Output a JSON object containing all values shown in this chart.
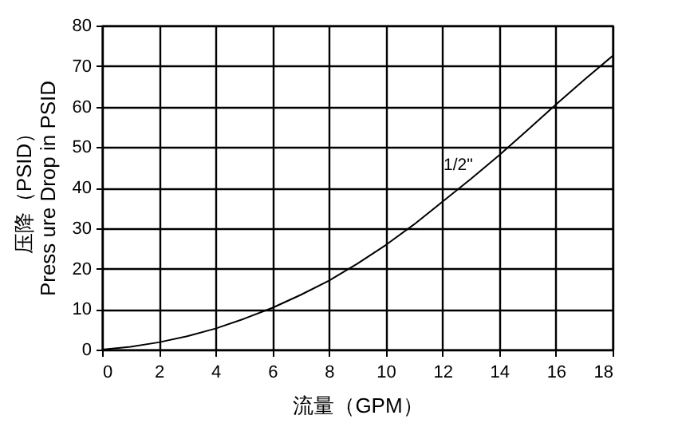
{
  "chart_data": {
    "type": "line",
    "xlabel": "流量（GPM）",
    "ylabel": "压降（PSID）\nPress ure Drop in PSID",
    "x": [
      0,
      1,
      2,
      3,
      4,
      5,
      6,
      7,
      8,
      9,
      10,
      11,
      12,
      13,
      14,
      15,
      16,
      17,
      18
    ],
    "series": [
      {
        "color": "#000000",
        "values": [
          0,
          0.7,
          1.8,
          3.3,
          5.2,
          7.6,
          10.3,
          13.5,
          17,
          21.2,
          25.8,
          30.9,
          36.5,
          42.1,
          48,
          54.2,
          60.5,
          66.6,
          72.5
        ]
      }
    ],
    "annotations": [
      {
        "text": "1/2\"",
        "x": 12.6,
        "y": 40
      }
    ],
    "xlim": [
      0,
      18
    ],
    "ylim": [
      0,
      80
    ],
    "xticks": [
      0,
      2,
      4,
      6,
      8,
      10,
      12,
      14,
      16,
      18
    ],
    "yticks": [
      0,
      10,
      20,
      30,
      40,
      50,
      60,
      70,
      80
    ],
    "grid": true,
    "marker": "none",
    "line_style": "solid"
  }
}
